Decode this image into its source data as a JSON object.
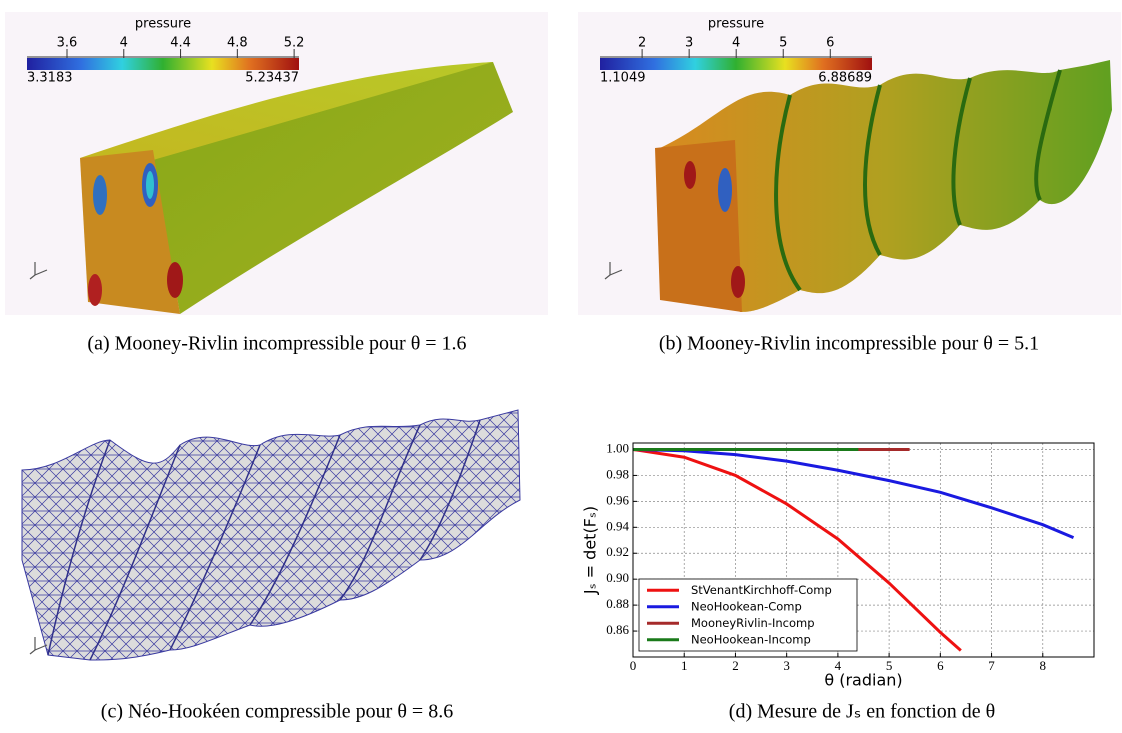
{
  "panels": [
    {
      "colorbar": {
        "title": "pressure",
        "ticks": [
          3.6,
          4,
          4.4,
          4.8,
          5.2
        ],
        "min": 3.3183,
        "max": 5.23437
      },
      "caption": "(a) Mooney-Rivlin incompressible pour θ = 1.6"
    },
    {
      "colorbar": {
        "title": "pressure",
        "ticks": [
          2,
          3,
          4,
          5,
          6
        ],
        "min": 1.1049,
        "max": 6.88689
      },
      "caption": "(b) Mooney-Rivlin incompressible pour θ = 5.1"
    },
    {
      "caption": "(c) Néo-Hookéen compressible pour θ = 8.6"
    },
    {
      "caption": "(d) Mesure de Jₛ en fonction de θ"
    }
  ],
  "chart_data": {
    "type": "line",
    "x_label": "θ (radian)",
    "y_label": "Jₛ = det(Fₛ)",
    "xlim": [
      0,
      9
    ],
    "ylim": [
      0.84,
      1.005
    ],
    "xticks": [
      0,
      1,
      2,
      3,
      4,
      5,
      6,
      7,
      8
    ],
    "yticks": [
      0.86,
      0.88,
      {
        "value": 0.9,
        "label": "0.90"
      },
      0.92,
      0.94,
      0.96,
      0.98,
      {
        "value": 1,
        "label": "1.00"
      }
    ],
    "grid": true,
    "legend": "lower left",
    "series": [
      {
        "name": "StVenantKirchhoff-Comp",
        "color": "#ee1111",
        "x": [
          0,
          1,
          2,
          3,
          4,
          5,
          6,
          6.4
        ],
        "values": [
          1.0,
          0.994,
          0.98,
          0.958,
          0.931,
          0.897,
          0.859,
          0.845
        ]
      },
      {
        "name": "NeoHookean-Comp",
        "color": "#1a1ae0",
        "x": [
          0,
          1,
          2,
          3,
          4,
          5,
          6,
          7,
          8,
          8.6
        ],
        "values": [
          1.0,
          0.999,
          0.996,
          0.991,
          0.984,
          0.976,
          0.967,
          0.955,
          0.942,
          0.932
        ]
      },
      {
        "name": "MooneyRivlin-Incomp",
        "color": "#a52a2a",
        "x": [
          0,
          5.4
        ],
        "values": [
          1.0,
          1.0
        ]
      },
      {
        "name": "NeoHookean-Incomp",
        "color": "#1a7a1a",
        "x": [
          0,
          4.4
        ],
        "values": [
          1.0,
          1.0
        ]
      }
    ]
  }
}
